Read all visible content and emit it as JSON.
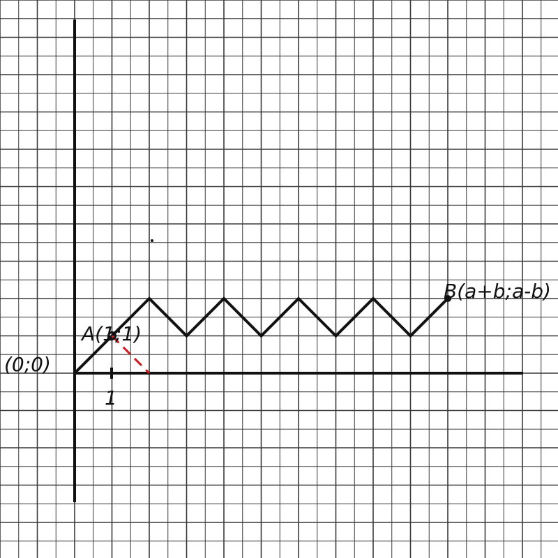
{
  "labels": {
    "origin": "(0;0)",
    "point_a": "A(1;1)",
    "point_b": "B(a+b;a-b)",
    "tick_one": "1"
  },
  "colors": {
    "grid": "#3a3a3a",
    "ink": "#111111",
    "dash": "#d0181f",
    "paper": "#ffffff"
  },
  "path_points": [
    [
      0,
      0
    ],
    [
      2,
      2
    ],
    [
      3,
      1
    ],
    [
      4,
      2
    ],
    [
      5,
      1
    ],
    [
      6,
      2
    ],
    [
      7,
      1
    ],
    [
      8,
      2
    ],
    [
      9,
      1
    ],
    [
      10,
      2
    ]
  ],
  "point_a_coords": [
    1,
    1
  ],
  "dash_end_coords": [
    2,
    0
  ],
  "tick_coords": [
    1,
    0
  ]
}
